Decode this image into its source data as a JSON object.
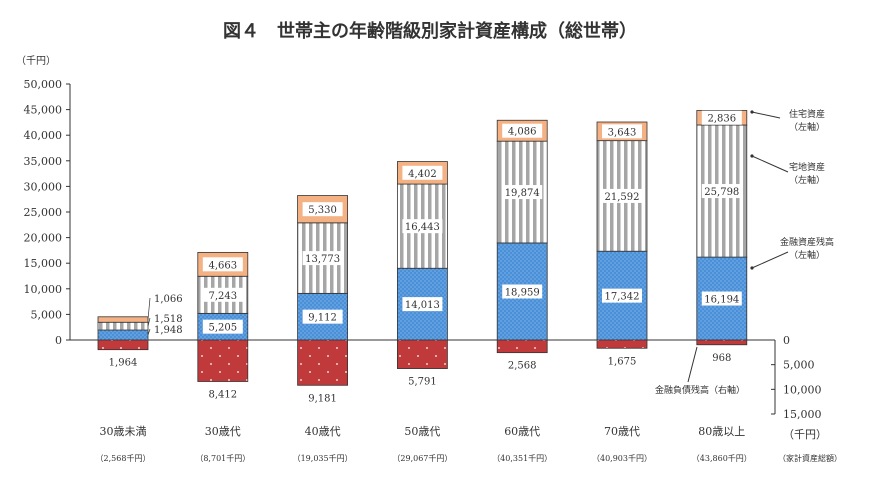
{
  "chart_data": {
    "type": "bar",
    "title": "図４　世帯主の年齢階級別家計資産構成（総世帯）",
    "ylabel": "（千円）",
    "ylim": [
      0,
      50000
    ],
    "yticks": [
      "0",
      "5,000",
      "10,000",
      "15,000",
      "20,000",
      "25,000",
      "30,000",
      "35,000",
      "40,000",
      "45,000",
      "50,000"
    ],
    "y2lim": [
      0,
      15000
    ],
    "y2ticks": [
      "0",
      "5,000",
      "10,000",
      "15,000"
    ],
    "y2label": "（千円）",
    "categories": [
      "30歳未満",
      "30歳代",
      "40歳代",
      "50歳代",
      "60歳代",
      "70歳代",
      "80歳以上"
    ],
    "totals": [
      "（2,568千円）",
      "（8,701千円）",
      "（19,035千円）",
      "（29,067千円）",
      "（40,351千円）",
      "（40,903千円）",
      "（43,860千円）"
    ],
    "totals_label": "（家計資産総額）",
    "series": [
      {
        "name": "金融資産残高",
        "axis_note": "（左軸）",
        "color": "#4a90d9",
        "values": [
          1948,
          5205,
          9112,
          14013,
          18959,
          17342,
          16194
        ]
      },
      {
        "name": "宅地資産",
        "axis_note": "（左軸）",
        "color": "#aaaaaa",
        "values": [
          1518,
          7243,
          13773,
          16443,
          19874,
          21592,
          25798
        ]
      },
      {
        "name": "住宅資産",
        "axis_note": "（左軸）",
        "color": "#f4b183",
        "values": [
          1066,
          4663,
          5330,
          4402,
          4086,
          3643,
          2836
        ]
      },
      {
        "name": "金融負債残高",
        "axis_note": "（右軸）",
        "color": "#c0393b",
        "values": [
          1964,
          8412,
          9181,
          5791,
          2568,
          1675,
          968
        ]
      }
    ],
    "value_labels": {
      "fin": [
        "1,948",
        "5,205",
        "9,112",
        "14,013",
        "18,959",
        "17,342",
        "16,194"
      ],
      "land": [
        "1,518",
        "7,243",
        "13,773",
        "16,443",
        "19,874",
        "21,592",
        "25,798"
      ],
      "house": [
        "1,066",
        "4,663",
        "5,330",
        "4,402",
        "4,086",
        "3,643",
        "2,836"
      ],
      "debt": [
        "1,964",
        "8,412",
        "9,181",
        "5,791",
        "2,568",
        "1,675",
        "968"
      ]
    },
    "legend_placement": "right (annotations with arrows)",
    "grid": false
  }
}
